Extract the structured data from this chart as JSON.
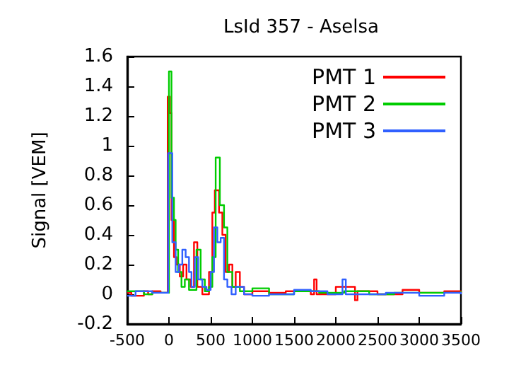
{
  "chart_data": {
    "type": "step",
    "title": "LsId 357 - Aselsa",
    "ylabel": "Signal [VEM]",
    "xlim": [
      -500,
      3500
    ],
    "xticks": [
      -500,
      0,
      500,
      1000,
      1500,
      2000,
      2500,
      3000,
      3500
    ],
    "ylim": [
      -0.2,
      1.6
    ],
    "yticks": [
      -0.2,
      0,
      0.2,
      0.4,
      0.6,
      0.8,
      1,
      1.2,
      1.4,
      1.6
    ],
    "grid": false,
    "legend": "top right",
    "marker": "none",
    "line_style": "solid",
    "series": [
      {
        "name": "PMT 1",
        "color": "#ff0000",
        "x": [
          -500,
          -450,
          -300,
          -250,
          -200,
          -100,
          -15,
          10,
          30,
          60,
          90,
          130,
          170,
          210,
          260,
          300,
          340,
          400,
          480,
          520,
          550,
          600,
          640,
          680,
          720,
          760,
          800,
          850,
          900,
          1000,
          1200,
          1400,
          1700,
          1740,
          1770,
          2000,
          2100,
          2230,
          2260,
          2500,
          2800,
          3000,
          3300,
          3500
        ],
        "values": [
          0.01,
          -0.01,
          0.02,
          0,
          0.02,
          0.01,
          1.33,
          1.22,
          0.5,
          0.25,
          0.2,
          0.12,
          0.2,
          0.1,
          0.05,
          0.35,
          0.05,
          0,
          0.15,
          0.55,
          0.7,
          0.55,
          0.4,
          0.15,
          0.2,
          0.05,
          0.15,
          0.05,
          0,
          0.02,
          0.01,
          0.02,
          0,
          0.1,
          0,
          0.05,
          0.05,
          -0.04,
          0.02,
          0,
          0.03,
          0.01,
          0.02,
          0.01
        ]
      },
      {
        "name": "PMT 2",
        "color": "#00cc00",
        "x": [
          -500,
          -300,
          -200,
          -50,
          0,
          30,
          60,
          80,
          110,
          150,
          190,
          240,
          330,
          380,
          430,
          480,
          520,
          560,
          610,
          660,
          700,
          760,
          850,
          1000,
          1200,
          1500,
          1800,
          2100,
          2400,
          2700,
          3000,
          3500
        ],
        "values": [
          0.02,
          0,
          0.01,
          0.01,
          1.5,
          0.65,
          0.5,
          0.3,
          0.15,
          0.05,
          0.1,
          0.03,
          0.3,
          0.1,
          0.02,
          0.05,
          0.25,
          0.92,
          0.6,
          0.45,
          0.15,
          0.05,
          0.02,
          0.04,
          0,
          0.02,
          0.01,
          0.02,
          0,
          0.01,
          0.01,
          0.02
        ]
      },
      {
        "name": "PMT 3",
        "color": "#3060ff",
        "x": [
          -500,
          -400,
          -200,
          -10,
          40,
          80,
          120,
          160,
          200,
          240,
          270,
          310,
          350,
          400,
          450,
          500,
          540,
          580,
          620,
          660,
          700,
          750,
          800,
          900,
          1000,
          1200,
          1500,
          1700,
          1900,
          2080,
          2120,
          2300,
          2600,
          3000,
          3300,
          3500
        ],
        "values": [
          -0.01,
          0.02,
          0.01,
          0.95,
          0.35,
          0.15,
          0.2,
          0.3,
          0.25,
          0.15,
          0.05,
          0.25,
          0.1,
          0.05,
          0.03,
          0.15,
          0.45,
          0.35,
          0.38,
          0.1,
          0.05,
          0,
          0.05,
          0,
          -0.01,
          0,
          0.03,
          0.02,
          0,
          0.1,
          0,
          0,
          0.01,
          -0.01,
          0.01,
          0
        ]
      }
    ]
  }
}
